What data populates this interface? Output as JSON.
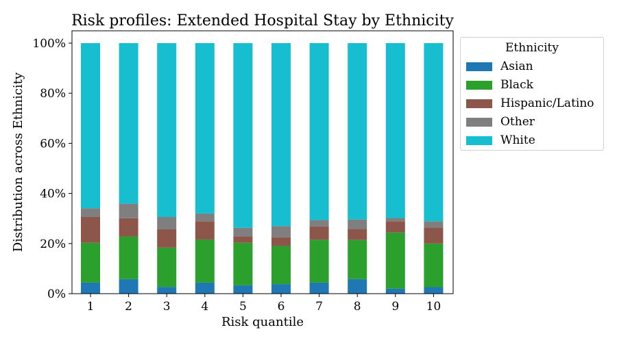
{
  "chart_data": {
    "type": "bar",
    "stacked": true,
    "title": "Risk profiles: Extended Hospital Stay by Ethnicity",
    "xlabel": "Risk quantile",
    "ylabel": "Distribution across Ethnicity",
    "ylim": [
      0,
      100
    ],
    "yticks": [
      "0%",
      "20%",
      "40%",
      "60%",
      "80%",
      "100%"
    ],
    "categories": [
      "1",
      "2",
      "3",
      "4",
      "5",
      "6",
      "7",
      "8",
      "9",
      "10"
    ],
    "legend": {
      "title": "Ethnicity",
      "placement": "outside-right-top"
    },
    "series": [
      {
        "name": "Asian",
        "color": "#1f77b4",
        "values": [
          4.4,
          5.8,
          2.7,
          4.4,
          3.3,
          3.8,
          4.4,
          5.8,
          2.0,
          2.6
        ]
      },
      {
        "name": "Black",
        "color": "#2ca02c",
        "values": [
          15.9,
          17.0,
          15.7,
          17.2,
          17.0,
          15.2,
          17.1,
          15.6,
          22.4,
          17.4
        ]
      },
      {
        "name": "Hispanic/Latino",
        "color": "#8c564b",
        "values": [
          10.3,
          7.3,
          7.3,
          7.3,
          2.5,
          3.5,
          5.3,
          4.4,
          4.5,
          6.4
        ]
      },
      {
        "name": "Other",
        "color": "#7f7f7f",
        "values": [
          3.5,
          5.8,
          4.9,
          3.1,
          3.5,
          4.5,
          2.6,
          3.8,
          1.3,
          2.5
        ]
      },
      {
        "name": "White",
        "color": "#17becf",
        "values": [
          65.9,
          64.1,
          69.4,
          68.0,
          73.7,
          73.0,
          70.6,
          70.4,
          69.8,
          71.1
        ]
      }
    ]
  }
}
